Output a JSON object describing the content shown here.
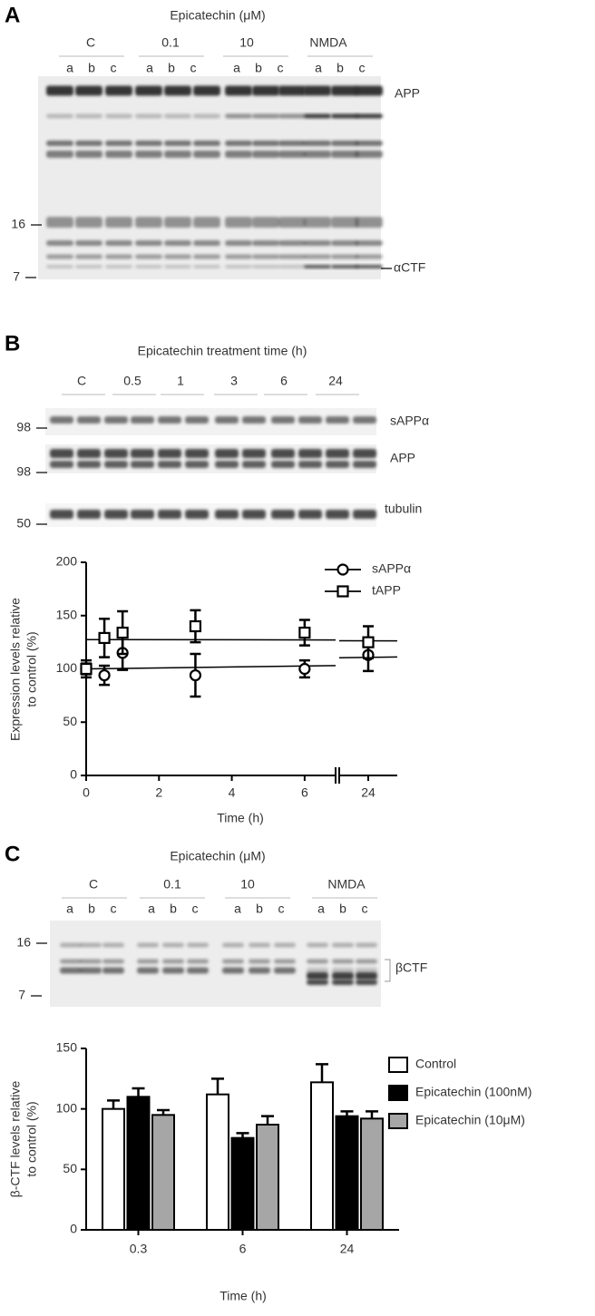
{
  "panels": [
    {
      "label": "A",
      "header": "Epicatechin (μM)",
      "groups": [
        "C",
        "0.1",
        "10",
        "NMDA"
      ],
      "lanes": [
        "a",
        "b",
        "c"
      ],
      "band_labels": [
        "APP",
        "αCTF"
      ],
      "markers": [
        "16",
        "7"
      ]
    },
    {
      "label": "B",
      "header": "Epicatechin treatment time (h)",
      "groups": [
        "C",
        "0.5",
        "1",
        "3",
        "6",
        "24"
      ],
      "band_labels": [
        "sAPPα",
        "APP",
        "tubulin"
      ],
      "markers": [
        "98",
        "98",
        "50"
      ]
    },
    {
      "label": "C",
      "header": "Epicatechin (μM)",
      "groups": [
        "C",
        "0.1",
        "10",
        "NMDA"
      ],
      "lanes": [
        "a",
        "b",
        "c"
      ],
      "band_labels": [
        "βCTF"
      ],
      "markers": [
        "16",
        "7"
      ]
    }
  ],
  "chart_data": [
    {
      "type": "scatter",
      "x_label": "Time (h)",
      "y_label": [
        "Expression levels relative",
        "to control (%)"
      ],
      "xlim": [
        [
          0,
          6.85
        ],
        [
          23.2,
          24.8
        ]
      ],
      "xticks": [
        0,
        2,
        4,
        6,
        24
      ],
      "ylim": [
        0,
        200
      ],
      "yticks": [
        0,
        50,
        100,
        150,
        200
      ],
      "legend": "top-right",
      "series": [
        {
          "name": "sAPPα",
          "marker": "circle",
          "color": "#000000",
          "x": [
            0,
            0.5,
            1,
            3,
            6,
            24
          ],
          "values": [
            100,
            94,
            115,
            94,
            100,
            113
          ],
          "errors": [
            8,
            9,
            16,
            20,
            8,
            15
          ],
          "fit": {
            "intercept": 100,
            "slope": 0.45
          }
        },
        {
          "name": "tAPP",
          "marker": "square",
          "color": "#000000",
          "x": [
            0,
            0.5,
            1,
            3,
            6,
            24
          ],
          "values": [
            100,
            129,
            134,
            140,
            134,
            125
          ],
          "errors": [
            5,
            18,
            20,
            15,
            12,
            15
          ],
          "fit": {
            "intercept": 127.5,
            "slope": -0.05
          }
        }
      ]
    },
    {
      "type": "bar",
      "x_label": "Time (h)",
      "y_label": [
        "β-CTF levels relative",
        "to control (%)"
      ],
      "categories": [
        "0.3",
        "6",
        "24"
      ],
      "ylim": [
        0,
        150
      ],
      "yticks": [
        0,
        50,
        100,
        150
      ],
      "legend": "right",
      "series": [
        {
          "name": "Control",
          "color": "#ffffff",
          "values": [
            100,
            112,
            122
          ],
          "errors": [
            7,
            13,
            15
          ]
        },
        {
          "name": "Epicatechin (100nM)",
          "color": "#000000",
          "values": [
            110,
            76,
            94
          ],
          "errors": [
            7,
            4,
            4
          ]
        },
        {
          "name": "Epicatechin (10μM)",
          "color": "#a6a6a6",
          "values": [
            95,
            87,
            92
          ],
          "errors": [
            4,
            7,
            6
          ]
        }
      ]
    }
  ]
}
